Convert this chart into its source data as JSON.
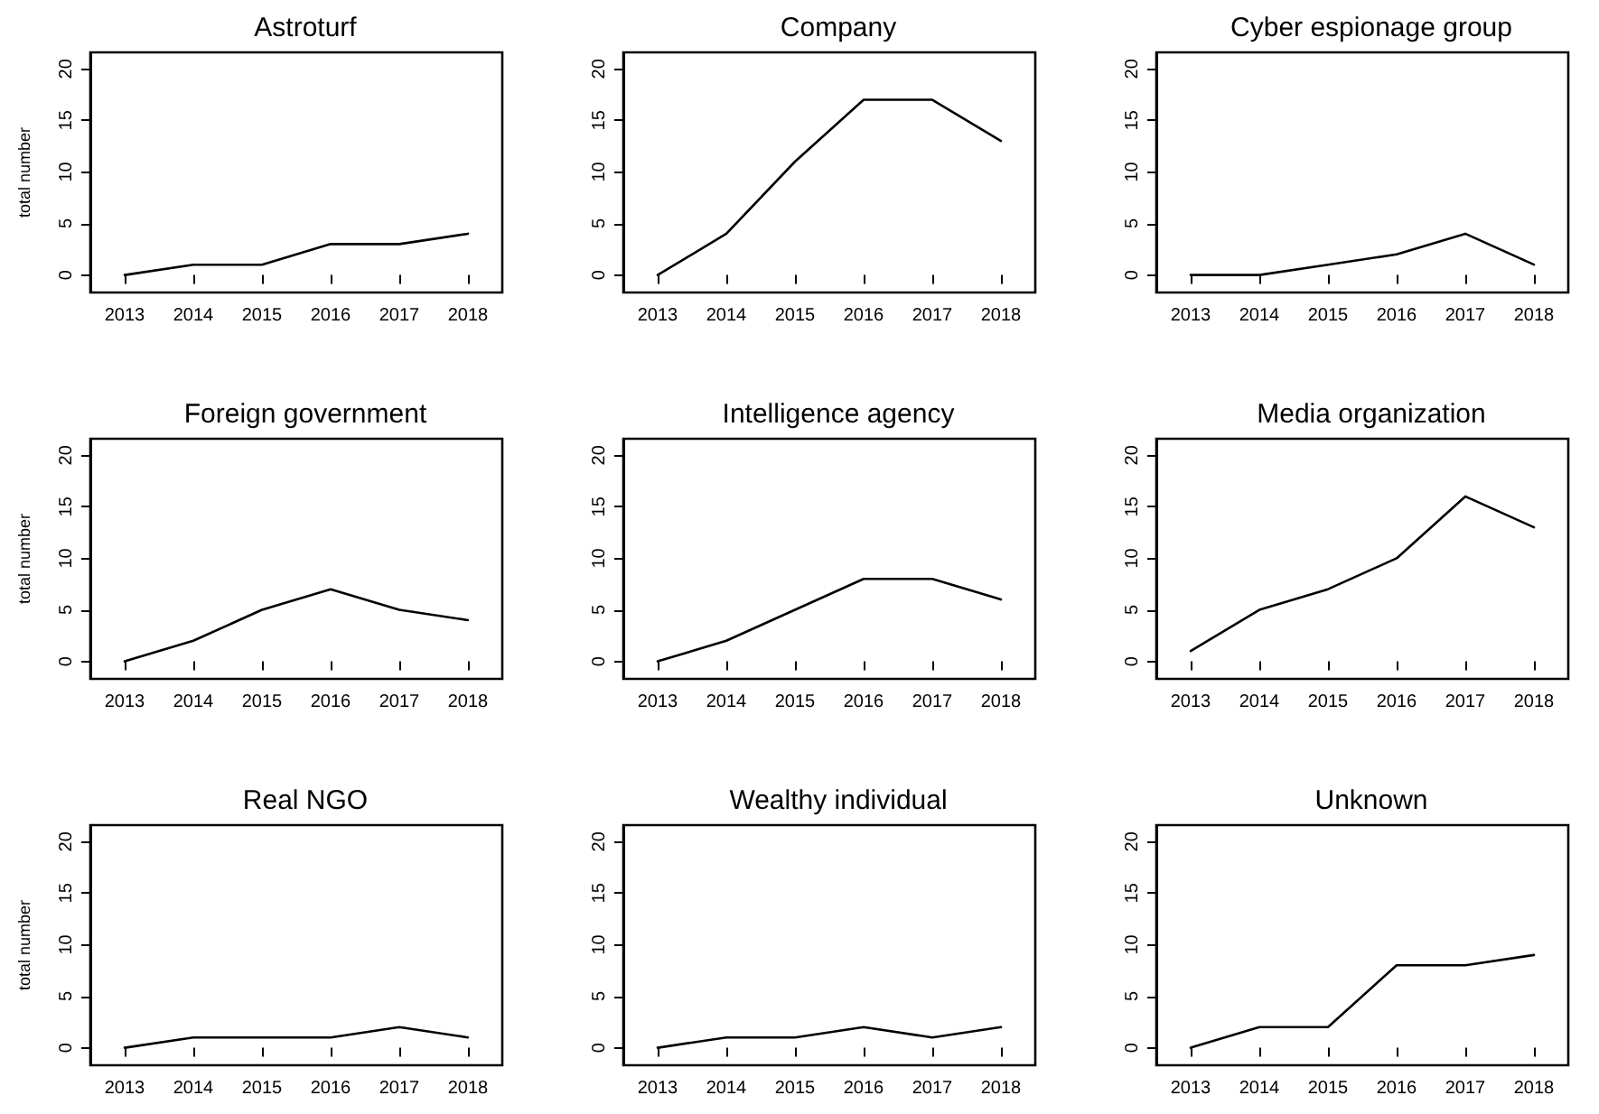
{
  "chart_data": [
    {
      "type": "line",
      "title": "Astroturf",
      "ylabel": "total number",
      "categories": [
        "2013",
        "2014",
        "2015",
        "2016",
        "2017",
        "2018"
      ],
      "values": [
        0,
        1,
        1,
        3,
        3,
        4
      ],
      "color": "#000000",
      "marker": "none",
      "line_style": "solid",
      "ylim": [
        -1.7,
        21.6
      ],
      "yticks": [
        0,
        5,
        10,
        15,
        20
      ]
    },
    {
      "type": "line",
      "title": "Company",
      "categories": [
        "2013",
        "2014",
        "2015",
        "2016",
        "2017",
        "2018"
      ],
      "values": [
        0,
        4,
        11,
        17,
        17,
        13
      ],
      "color": "#000000",
      "marker": "none",
      "line_style": "solid",
      "ylim": [
        -1.7,
        21.6
      ],
      "yticks": [
        0,
        5,
        10,
        15,
        20
      ]
    },
    {
      "type": "line",
      "title": "Cyber espionage group",
      "categories": [
        "2013",
        "2014",
        "2015",
        "2016",
        "2017",
        "2018"
      ],
      "values": [
        0,
        0,
        1,
        2,
        4,
        1
      ],
      "color": "#000000",
      "marker": "none",
      "line_style": "solid",
      "ylim": [
        -1.7,
        21.6
      ],
      "yticks": [
        0,
        5,
        10,
        15,
        20
      ]
    },
    {
      "type": "line",
      "title": "Foreign government",
      "ylabel": "total number",
      "categories": [
        "2013",
        "2014",
        "2015",
        "2016",
        "2017",
        "2018"
      ],
      "values": [
        0,
        2,
        5,
        7,
        5,
        4
      ],
      "color": "#000000",
      "marker": "none",
      "line_style": "solid",
      "ylim": [
        -1.7,
        21.6
      ],
      "yticks": [
        0,
        5,
        10,
        15,
        20
      ]
    },
    {
      "type": "line",
      "title": "Intelligence agency",
      "categories": [
        "2013",
        "2014",
        "2015",
        "2016",
        "2017",
        "2018"
      ],
      "values": [
        0,
        2,
        5,
        8,
        8,
        6
      ],
      "color": "#000000",
      "marker": "none",
      "line_style": "solid",
      "ylim": [
        -1.7,
        21.6
      ],
      "yticks": [
        0,
        5,
        10,
        15,
        20
      ]
    },
    {
      "type": "line",
      "title": "Media organization",
      "categories": [
        "2013",
        "2014",
        "2015",
        "2016",
        "2017",
        "2018"
      ],
      "values": [
        1,
        5,
        7,
        10,
        16,
        13
      ],
      "color": "#000000",
      "marker": "none",
      "line_style": "solid",
      "ylim": [
        -1.7,
        21.6
      ],
      "yticks": [
        0,
        5,
        10,
        15,
        20
      ]
    },
    {
      "type": "line",
      "title": "Real NGO",
      "ylabel": "total number",
      "categories": [
        "2013",
        "2014",
        "2015",
        "2016",
        "2017",
        "2018"
      ],
      "values": [
        0,
        1,
        1,
        1,
        2,
        1
      ],
      "color": "#000000",
      "marker": "none",
      "line_style": "solid",
      "ylim": [
        -1.7,
        21.6
      ],
      "yticks": [
        0,
        5,
        10,
        15,
        20
      ]
    },
    {
      "type": "line",
      "title": "Wealthy individual",
      "categories": [
        "2013",
        "2014",
        "2015",
        "2016",
        "2017",
        "2018"
      ],
      "values": [
        0,
        1,
        1,
        2,
        1,
        2
      ],
      "color": "#000000",
      "marker": "none",
      "line_style": "solid",
      "ylim": [
        -1.7,
        21.6
      ],
      "yticks": [
        0,
        5,
        10,
        15,
        20
      ]
    },
    {
      "type": "line",
      "title": "Unknown",
      "categories": [
        "2013",
        "2014",
        "2015",
        "2016",
        "2017",
        "2018"
      ],
      "values": [
        0,
        2,
        2,
        8,
        8,
        9
      ],
      "color": "#000000",
      "marker": "none",
      "line_style": "solid",
      "ylim": [
        -1.7,
        21.6
      ],
      "yticks": [
        0,
        5,
        10,
        15,
        20
      ]
    }
  ]
}
